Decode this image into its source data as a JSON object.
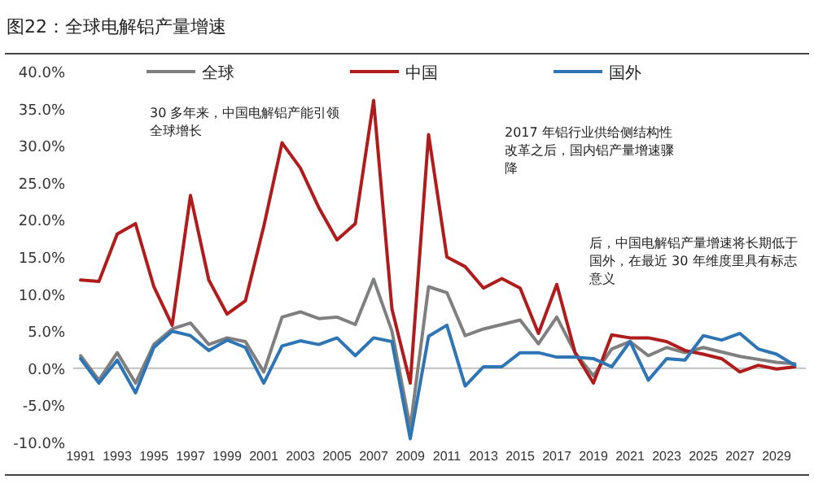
{
  "chart_data": {
    "type": "line",
    "title": "图22：全球电解铝产量增速",
    "x": [
      1991,
      1992,
      1993,
      1994,
      1995,
      1996,
      1997,
      1998,
      1999,
      2000,
      2001,
      2002,
      2003,
      2004,
      2005,
      2006,
      2007,
      2008,
      2009,
      2010,
      2011,
      2012,
      2013,
      2014,
      2015,
      2016,
      2017,
      2018,
      2019,
      2020,
      2021,
      2022,
      2023,
      2024,
      2025,
      2026,
      2027,
      2028,
      2029,
      2030
    ],
    "series": [
      {
        "name": "全球",
        "color": "#7f7f7f",
        "values": [
          1.7,
          -1.6,
          2.1,
          -2.0,
          3.2,
          5.3,
          6.1,
          3.2,
          4.1,
          3.6,
          -0.5,
          6.9,
          7.6,
          6.7,
          6.9,
          5.9,
          12.0,
          5.0,
          -8.0,
          11.0,
          10.2,
          4.4,
          5.3,
          5.9,
          6.5,
          3.3,
          6.9,
          2.1,
          -1.0,
          2.6,
          3.6,
          1.7,
          2.8,
          2.1,
          2.8,
          2.2,
          1.6,
          1.2,
          0.8,
          0.6
        ]
      },
      {
        "name": "中国",
        "color": "#b01c1c",
        "values": [
          11.9,
          11.7,
          18.1,
          19.5,
          11.0,
          5.8,
          23.3,
          11.9,
          7.3,
          9.1,
          19.1,
          30.4,
          27.0,
          21.7,
          17.3,
          19.5,
          36.1,
          8.0,
          -2.0,
          31.5,
          15.0,
          13.7,
          10.8,
          12.1,
          10.8,
          4.7,
          11.3,
          2.1,
          -2.0,
          4.5,
          4.1,
          4.1,
          3.6,
          2.4,
          1.9,
          1.3,
          -0.5,
          0.4,
          -0.1,
          0.2
        ]
      },
      {
        "name": "国外",
        "color": "#2e75b6",
        "values": [
          1.3,
          -2.0,
          1.1,
          -3.3,
          2.8,
          5.0,
          4.4,
          2.4,
          3.8,
          2.8,
          -2.0,
          3.0,
          3.7,
          3.2,
          4.1,
          1.7,
          4.1,
          3.6,
          -9.5,
          4.3,
          5.8,
          -2.4,
          0.2,
          0.2,
          2.1,
          2.1,
          1.5,
          1.5,
          1.3,
          0.2,
          3.6,
          -1.6,
          1.3,
          1.1,
          4.4,
          3.8,
          4.7,
          2.6,
          1.9,
          0.4
        ]
      }
    ],
    "xlim": [
      1990.6,
      2030.6
    ],
    "xticks": [
      1991,
      1993,
      1995,
      1997,
      1999,
      2001,
      2003,
      2005,
      2007,
      2009,
      2011,
      2013,
      2015,
      2017,
      2019,
      2021,
      2023,
      2025,
      2027,
      2029
    ],
    "ylim": [
      -10,
      40
    ],
    "yticks": [
      {
        "value": -10,
        "label": "-10.0%"
      },
      {
        "value": -5,
        "label": "-5.0%"
      },
      {
        "value": 0,
        "label": "0.0%"
      },
      {
        "value": 5,
        "label": "5.0%"
      },
      {
        "value": 10,
        "label": "10.0%"
      },
      {
        "value": 15,
        "label": "15.0%"
      },
      {
        "value": 20,
        "label": "20.0%"
      },
      {
        "value": 25,
        "label": "25.0%"
      },
      {
        "value": 30,
        "label": "30.0%"
      },
      {
        "value": 35,
        "label": "35.0%"
      },
      {
        "value": 40,
        "label": "40.0%"
      }
    ],
    "legend": "top",
    "ref_lines": [
      {
        "axis": "y",
        "value": 0,
        "color": "#bfbfbf"
      }
    ],
    "marker": "none",
    "line_style": "solid",
    "annotations": [
      "30 多年来，中国电解铝产能引领全球增长",
      "2017 年铝行业供给侧结构性改革之后，国内铝产量增速骤降",
      "后，中国电解铝产量增速将长期低于国外，在最近 30 年维度里具有标志意义"
    ]
  }
}
